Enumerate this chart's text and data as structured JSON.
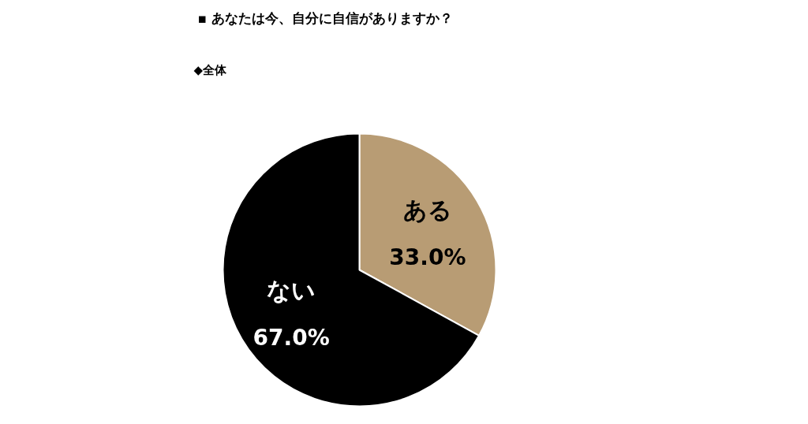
{
  "chart_data": {
    "type": "pie",
    "title": "▪ あなたは今、自分に自信がありますか？",
    "subtitle": "◆全体",
    "categories": [
      "ある",
      "ない"
    ],
    "values": [
      33.0,
      67.0
    ],
    "colors": [
      "#b89c74",
      "#000000"
    ],
    "value_labels": [
      "33.0%",
      "67.0%"
    ]
  }
}
